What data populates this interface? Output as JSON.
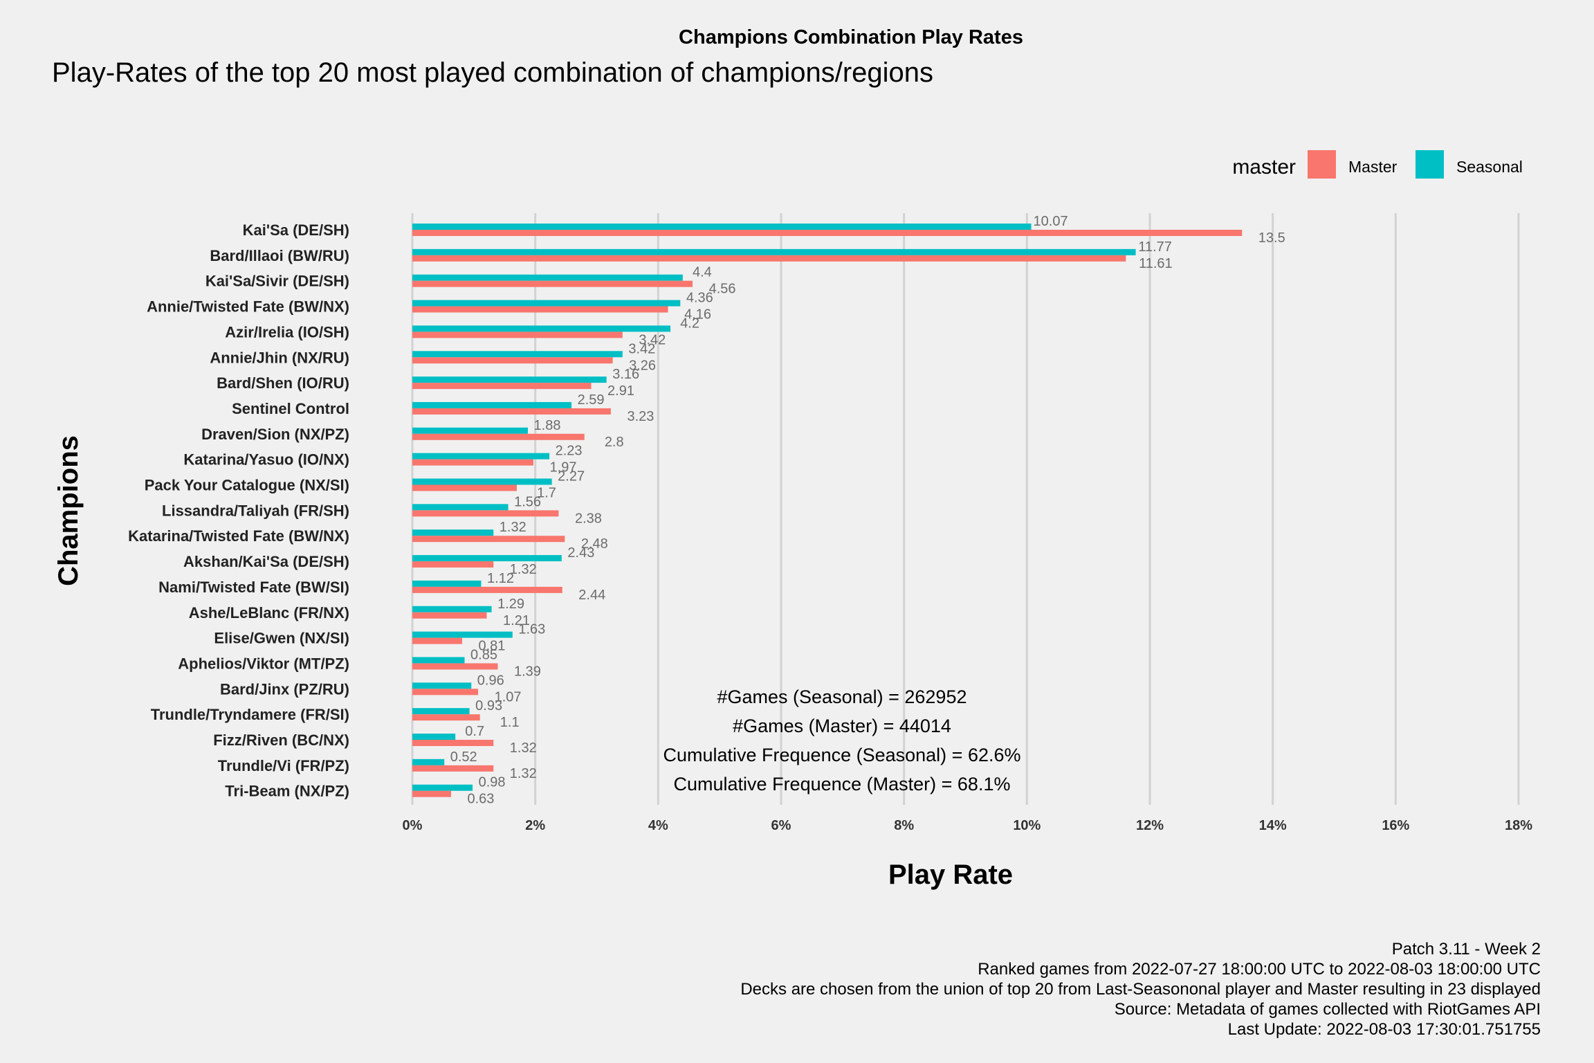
{
  "chart_data": {
    "type": "bar",
    "orientation": "horizontal",
    "title": "Champions Combination Play Rates",
    "subtitle": "Play-Rates of the top 20 most played combination of champions/regions",
    "xlabel": "Play Rate",
    "ylabel": "Champions",
    "xlim": [
      0,
      18
    ],
    "x_ticks": [
      "0%",
      "2%",
      "4%",
      "6%",
      "8%",
      "10%",
      "12%",
      "14%",
      "16%",
      "18%"
    ],
    "grid": "vertical major gridlines",
    "legend": {
      "title": "master",
      "position": "top-right",
      "items": [
        {
          "label": "Master",
          "color": "#f8766d"
        },
        {
          "label": "Seasonal",
          "color": "#00bfc4"
        }
      ]
    },
    "categories": [
      "Kai'Sa (DE/SH)",
      "Bard/Illaoi (BW/RU)",
      "Kai'Sa/Sivir (DE/SH)",
      "Annie/Twisted Fate (BW/NX)",
      "Azir/Irelia (IO/SH)",
      "Annie/Jhin (NX/RU)",
      "Bard/Shen (IO/RU)",
      "Sentinel Control",
      "Draven/Sion (NX/PZ)",
      "Katarina/Yasuo (IO/NX)",
      "Pack Your Catalogue (NX/SI)",
      "Lissandra/Taliyah (FR/SH)",
      "Katarina/Twisted Fate (BW/NX)",
      "Akshan/Kai'Sa (DE/SH)",
      "Nami/Twisted Fate (BW/SI)",
      "Ashe/LeBlanc (FR/NX)",
      "Elise/Gwen (NX/SI)",
      "Aphelios/Viktor (MT/PZ)",
      "Bard/Jinx (PZ/RU)",
      "Trundle/Tryndamere (FR/SI)",
      "Fizz/Riven (BC/NX)",
      "Trundle/Vi (FR/PZ)",
      "Tri-Beam (NX/PZ)"
    ],
    "series": [
      {
        "name": "Seasonal",
        "color": "#00bfc4",
        "values": [
          10.07,
          11.77,
          4.4,
          4.36,
          4.2,
          3.42,
          3.16,
          2.59,
          1.88,
          2.23,
          2.27,
          1.56,
          1.32,
          2.43,
          1.12,
          1.29,
          1.63,
          0.85,
          0.96,
          0.93,
          0.7,
          0.52,
          0.98
        ],
        "labels": [
          "10.07",
          "11.77",
          "4.4",
          "4.36",
          "4.2",
          "3.42",
          "3.16",
          "2.59",
          "1.88",
          "2.23",
          "2.27",
          "1.56",
          "1.32",
          "2.43",
          "1.12",
          "1.29",
          "1.63",
          "0.85",
          "0.96",
          "0.93",
          "0.7",
          "0.52",
          "0.98"
        ]
      },
      {
        "name": "Master",
        "color": "#f8766d",
        "values": [
          13.5,
          11.61,
          4.56,
          4.16,
          3.42,
          3.26,
          2.91,
          3.23,
          2.8,
          1.97,
          1.7,
          2.38,
          2.48,
          1.32,
          2.44,
          1.21,
          0.81,
          1.39,
          1.07,
          1.1,
          1.32,
          1.32,
          0.63
        ],
        "labels": [
          "13.5",
          "11.61",
          "4.56",
          "4.16",
          "3.42",
          "3.26",
          "2.91",
          "3.23",
          "2.8",
          "1.97",
          "1.7",
          "2.38",
          "2.48",
          "1.32",
          "2.44",
          "1.21",
          "0.81",
          "1.39",
          "1.07",
          "1.1",
          "1.32",
          "1.32",
          "0.63"
        ]
      }
    ],
    "annotations": [
      "#Games (Seasonal) = 262952",
      "#Games (Master) = 44014",
      "Cumulative Frequence (Seasonal) = 62.6%",
      "Cumulative Frequence (Master) = 68.1%"
    ],
    "caption": [
      "Patch 3.11 - Week 2",
      "Ranked games from 2022-07-27 18:00:00 UTC to 2022-08-03 18:00:00 UTC",
      "Decks are chosen from the union of top 20 from Last-Seasononal player and Master resulting in 23 displayed",
      "Source: Metadata of games collected with RiotGames API",
      "Last Update: 2022-08-03 17:30:01.751755"
    ]
  }
}
